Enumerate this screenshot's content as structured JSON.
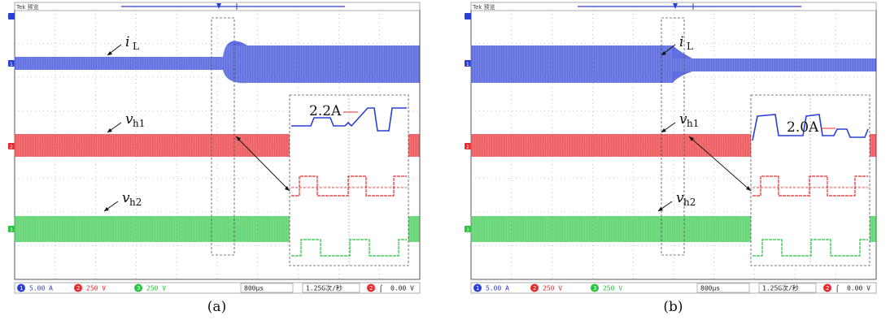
{
  "figure": {
    "panels": [
      {
        "caption": "(a)",
        "header": "Tek 预览",
        "trace_labels": {
          "iL_main": "i",
          "iL_sub": "L",
          "vh1_main": "v",
          "vh1_sub": "h1",
          "vh2_main": "v",
          "vh2_sub": "h2"
        },
        "annotation": "2.2A",
        "status_bar": {
          "ch1": "5.00 A",
          "ch2": "250 V",
          "ch3": "250 V",
          "timebase": "800μs",
          "sample_rate": "1.25G次/秒",
          "trigger_ch": "2",
          "trigger_level": "0.00 V"
        },
        "channel_markers": [
          "1",
          "2",
          "3"
        ]
      },
      {
        "caption": "(b)",
        "header": "Tek 预览",
        "trace_labels": {
          "iL_main": "i",
          "iL_sub": "L",
          "vh1_main": "v",
          "vh1_sub": "h1",
          "vh2_main": "v",
          "vh2_sub": "h2"
        },
        "annotation": "2.0A",
        "status_bar": {
          "ch1": "5.00 A",
          "ch2": "250 V",
          "ch3": "250 V",
          "timebase": "800μs",
          "sample_rate": "1.25G次/秒",
          "trigger_ch": "2",
          "trigger_level": "0.00 V"
        },
        "channel_markers": [
          "1",
          "2",
          "3"
        ]
      }
    ],
    "colors": {
      "ch1": "#2a3fd6",
      "ch2": "#e8282b",
      "ch3": "#23c43a",
      "grid": "#9a9a9a"
    }
  },
  "chart_data": [
    {
      "type": "line",
      "title": "",
      "series": [
        {
          "name": "iL",
          "description_values": {
            "ripple_before_step_A": 3.0,
            "ripple_after_step_A": 4.4
          }
        },
        {
          "name": "vh1",
          "amplitude_V": 250
        },
        {
          "name": "vh2",
          "amplitude_V": 250
        }
      ],
      "annotation": "2.2A",
      "timebase": "800μs"
    },
    {
      "type": "line",
      "title": "",
      "series": [
        {
          "name": "iL",
          "description_values": {
            "ripple_before_step_A": 4.4,
            "ripple_after_step_A": 2.0
          }
        },
        {
          "name": "vh1",
          "amplitude_V": 250
        },
        {
          "name": "vh2",
          "amplitude_V": 250
        }
      ],
      "annotation": "2.0A",
      "timebase": "800μs"
    }
  ]
}
